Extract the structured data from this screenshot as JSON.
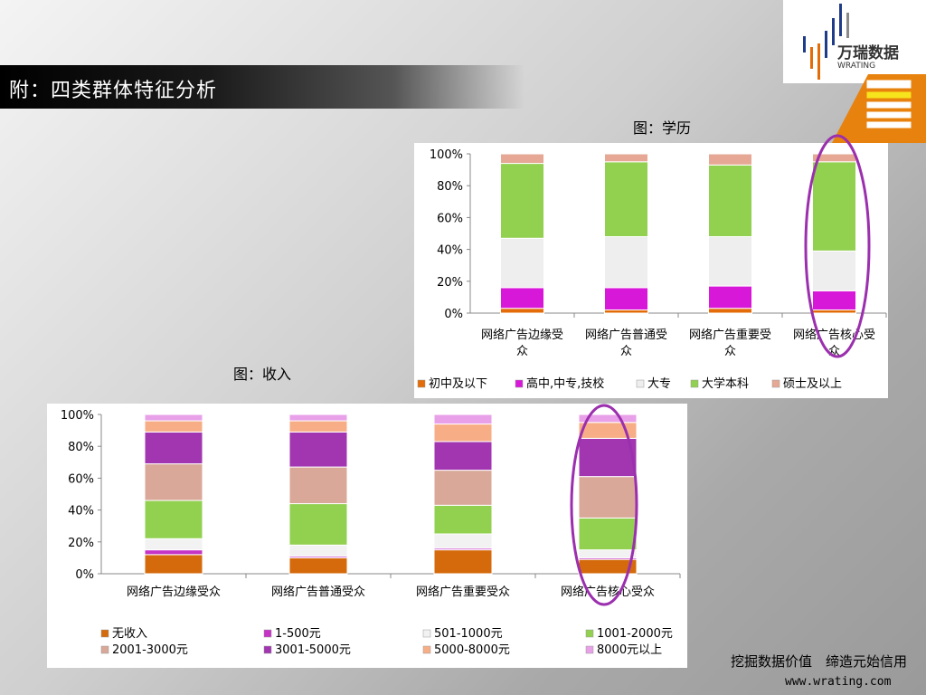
{
  "slide": {
    "title": "附：四类群体特征分析",
    "slogan": "挖掘数据价值　缔造元始信用",
    "url": "www.wrating.com"
  },
  "logo": {
    "cn": "万瑞数据",
    "en": "WRATING"
  },
  "colors": {
    "highlight_ellipse": "#9b2fae"
  },
  "chart_data": [
    {
      "type": "bar",
      "stacked": "percent",
      "title": "图：学历",
      "categories": [
        "网络广告边缘受众",
        "网络广告普通受众",
        "网络广告重要受众",
        "网络广告核心受众"
      ],
      "y_ticks": [
        "0%",
        "20%",
        "40%",
        "60%",
        "80%",
        "100%"
      ],
      "ylim": [
        0,
        100
      ],
      "legend_position": "bottom",
      "series": [
        {
          "name": "初中及以下",
          "color": "#e36c09",
          "values": [
            3,
            2,
            3,
            2
          ]
        },
        {
          "name": "高中,中专,技校",
          "color": "#d818d8",
          "values": [
            13,
            14,
            14,
            12
          ]
        },
        {
          "name": "大专",
          "color": "#eeeeee",
          "values": [
            31,
            32,
            31,
            25
          ]
        },
        {
          "name": "大学本科",
          "color": "#92d050",
          "values": [
            47,
            47,
            45,
            56
          ]
        },
        {
          "name": "硕士及以上",
          "color": "#e6a894",
          "values": [
            6,
            5,
            7,
            5
          ]
        }
      ]
    },
    {
      "type": "bar",
      "stacked": "percent",
      "title": "图：收入",
      "categories": [
        "网络广告边缘受众",
        "网络广告普通受众",
        "网络广告重要受众",
        "网络广告核心受众"
      ],
      "y_ticks": [
        "0%",
        "20%",
        "40%",
        "60%",
        "80%",
        "100%"
      ],
      "ylim": [
        0,
        100
      ],
      "legend_position": "bottom",
      "series": [
        {
          "name": "无收入",
          "color": "#d46a0b",
          "values": [
            12,
            10,
            15,
            9
          ]
        },
        {
          "name": "1-500元",
          "color": "#c634c6",
          "values": [
            3,
            1,
            1,
            1
          ]
        },
        {
          "name": "501-1000元",
          "color": "#f2f2f2",
          "values": [
            7,
            7,
            9,
            5
          ]
        },
        {
          "name": "1001-2000元",
          "color": "#92d050",
          "values": [
            24,
            26,
            18,
            20
          ]
        },
        {
          "name": "2001-3000元",
          "color": "#d9a898",
          "values": [
            23,
            23,
            22,
            26
          ]
        },
        {
          "name": "3001-5000元",
          "color": "#a136b0",
          "values": [
            20,
            22,
            18,
            24
          ]
        },
        {
          "name": "5000-8000元",
          "color": "#f7ae86",
          "values": [
            7,
            7,
            11,
            10
          ]
        },
        {
          "name": "8000元以上",
          "color": "#e8a0e8",
          "values": [
            4,
            4,
            6,
            5
          ]
        }
      ]
    }
  ]
}
